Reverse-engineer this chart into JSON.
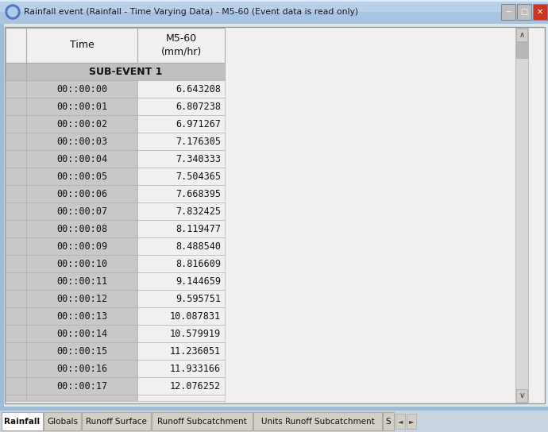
{
  "title": "Rainfall event (Rainfall - Time Varying Data) - M5-60 (Event data is read only)",
  "col1_header": "Time",
  "col2_header": "M5-60\n(mm/hr)",
  "subevent_label": "SUB-EVENT 1",
  "time_values": [
    "00::00:00",
    "00::00:01",
    "00::00:02",
    "00::00:03",
    "00::00:04",
    "00::00:05",
    "00::00:06",
    "00::00:07",
    "00::00:08",
    "00::00:09",
    "00::00:10",
    "00::00:11",
    "00::00:12",
    "00::00:13",
    "00::00:14",
    "00::00:15",
    "00::00:16",
    "00::00:17"
  ],
  "rain_values": [
    "6.643208",
    "6.807238",
    "6.971267",
    "7.176305",
    "7.340333",
    "7.504365",
    "7.668395",
    "7.832425",
    "8.119477",
    "8.488540",
    "8.816609",
    "9.144659",
    "9.595751",
    "10.087831",
    "10.579919",
    "11.236051",
    "11.933166",
    "12.076252"
  ],
  "tab_labels": [
    "Rainfall",
    "Globals",
    "Runoff Surface",
    "Runoff Subcatchment",
    "Units Runoff Subcatchment",
    "S"
  ],
  "tab_widths": [
    52,
    47,
    87,
    127,
    162,
    14
  ],
  "win_bg": "#c8d8e8",
  "titlebar_bg": "#5b9bd5",
  "titlebar_text": "#ffffff",
  "outer_border": "#7aa8c8",
  "inner_bg": "#e8e8e8",
  "content_bg": "#f0f0f0",
  "header_bg": "#f0f0f0",
  "cell_bg": "#c8c8c8",
  "value_bg": "#f0f0f0",
  "subevent_bg": "#c0c0c0",
  "grid_line": "#aaaaaa",
  "tab_active_bg": "#ffffff",
  "tab_bar_bg": "#c8d4e0",
  "scrollbar_track": "#d8d8d8",
  "scrollbar_thumb": "#b8b8b8"
}
